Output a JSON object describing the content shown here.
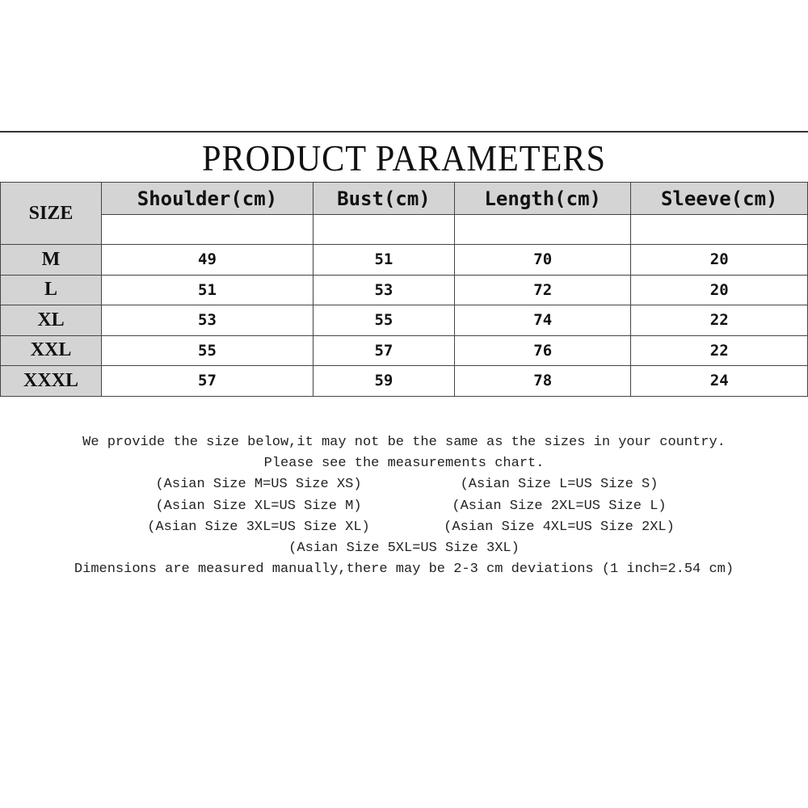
{
  "title": "PRODUCT PARAMETERS",
  "table": {
    "size_header": "SIZE",
    "columns": [
      "Shoulder(cm)",
      "Bust(cm)",
      "Length(cm)",
      "Sleeve(cm)"
    ],
    "rows": [
      {
        "size": "M",
        "values": [
          "49",
          "51",
          "70",
          "20"
        ]
      },
      {
        "size": "L",
        "values": [
          "51",
          "53",
          "72",
          "20"
        ]
      },
      {
        "size": "XL",
        "values": [
          "53",
          "55",
          "74",
          "22"
        ]
      },
      {
        "size": "XXL",
        "values": [
          "55",
          "57",
          "76",
          "22"
        ]
      },
      {
        "size": "XXXL",
        "values": [
          "57",
          "59",
          "78",
          "24"
        ]
      }
    ]
  },
  "notes": {
    "line1": "We provide the size below,it may not be the same as the sizes in your country.",
    "line2": "Please see the measurements chart.",
    "pairs": [
      [
        "(Asian Size M=US Size XS)",
        "(Asian Size L=US Size S)"
      ],
      [
        "(Asian Size XL=US Size M)",
        "(Asian Size 2XL=US Size L)"
      ],
      [
        "(Asian Size 3XL=US Size XL)",
        "(Asian Size 4XL=US Size 2XL)"
      ]
    ],
    "line_single": "(Asian Size 5XL=US Size 3XL)",
    "line_last": "Dimensions are measured manually,there may be 2-3 cm deviations (1 inch=2.54 cm)"
  }
}
